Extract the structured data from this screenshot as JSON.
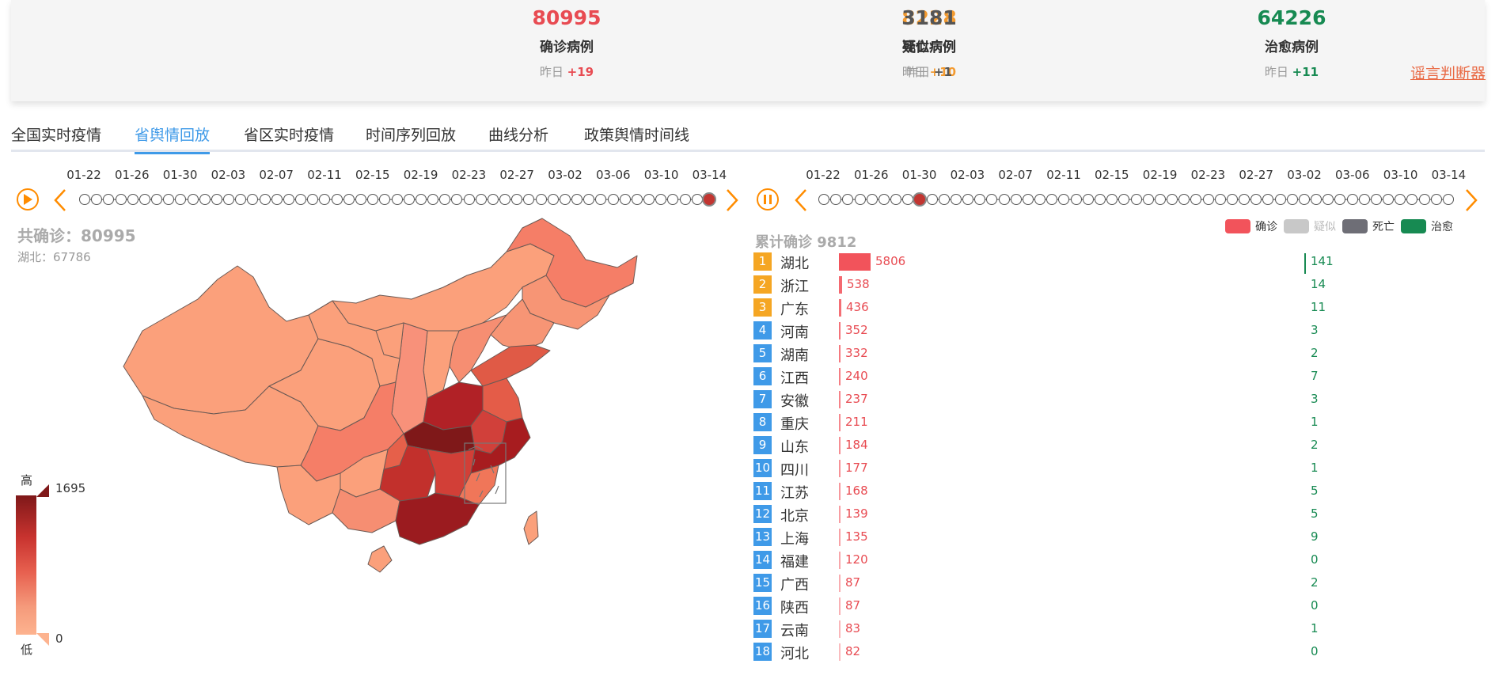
{
  "stats": [
    {
      "value": "80995",
      "label": "确诊病例",
      "yesterday_prefix": "昨日",
      "delta": "+19",
      "color": "#e84b52"
    },
    {
      "value": "8228",
      "label": "疑似病例",
      "yesterday_prefix": "昨日",
      "delta": "+10",
      "color": "#f39a2f"
    },
    {
      "value": "3181",
      "label": "死亡病例",
      "yesterday_prefix": "昨日",
      "delta": "+1",
      "color": "#555555"
    },
    {
      "value": "64226",
      "label": "治愈病例",
      "yesterday_prefix": "昨日",
      "delta": "+11",
      "color": "#178a52"
    }
  ],
  "rumor_link": "谣言判断器",
  "tabs": [
    "全国实时疫情",
    "省舆情回放",
    "省区实时疫情",
    "时间序列回放",
    "曲线分析",
    "政策舆情时间线"
  ],
  "active_tab": 1,
  "timeline_left": {
    "dates": [
      "01-22",
      "01-26",
      "01-30",
      "02-03",
      "02-07",
      "02-11",
      "02-15",
      "02-19",
      "02-23",
      "02-27",
      "03-02",
      "03-06",
      "03-10",
      "03-14"
    ],
    "play_state": "play",
    "current": "03-14"
  },
  "timeline_right": {
    "dates": [
      "01-22",
      "01-26",
      "01-30",
      "02-03",
      "02-07",
      "02-11",
      "02-15",
      "02-19",
      "02-23",
      "02-27",
      "03-02",
      "03-06",
      "03-10",
      "03-14"
    ],
    "play_state": "pause",
    "current": "01-30"
  },
  "map": {
    "title": "共确诊：80995",
    "subtitle": "湖北：67786",
    "legend_high": "高",
    "legend_low": "低",
    "legend_max": "1695",
    "legend_min": "0"
  },
  "ranking": {
    "title": "累计确诊 9812",
    "legend": [
      {
        "label": "确诊",
        "color": "#f2535b"
      },
      {
        "label": "疑似",
        "color": "#c8c8c8"
      },
      {
        "label": "死亡",
        "color": "#6e6e76"
      },
      {
        "label": "治愈",
        "color": "#178a52"
      }
    ],
    "max_confirmed": 5806,
    "rows": [
      {
        "rank": "1",
        "province": "湖北",
        "confirmed": 5806,
        "healed": "141"
      },
      {
        "rank": "2",
        "province": "浙江",
        "confirmed": 538,
        "healed": "14"
      },
      {
        "rank": "3",
        "province": "广东",
        "confirmed": 436,
        "healed": "11"
      },
      {
        "rank": "4",
        "province": "河南",
        "confirmed": 352,
        "healed": "3"
      },
      {
        "rank": "5",
        "province": "湖南",
        "confirmed": 332,
        "healed": "2"
      },
      {
        "rank": "6",
        "province": "江西",
        "confirmed": 240,
        "healed": "7"
      },
      {
        "rank": "7",
        "province": "安徽",
        "confirmed": 237,
        "healed": "3"
      },
      {
        "rank": "8",
        "province": "重庆",
        "confirmed": 211,
        "healed": "1"
      },
      {
        "rank": "9",
        "province": "山东",
        "confirmed": 184,
        "healed": "2"
      },
      {
        "rank": "10",
        "province": "四川",
        "confirmed": 177,
        "healed": "1"
      },
      {
        "rank": "11",
        "province": "江苏",
        "confirmed": 168,
        "healed": "5"
      },
      {
        "rank": "12",
        "province": "北京",
        "confirmed": 139,
        "healed": "5"
      },
      {
        "rank": "13",
        "province": "上海",
        "confirmed": 135,
        "healed": "9"
      },
      {
        "rank": "14",
        "province": "福建",
        "confirmed": 120,
        "healed": "0"
      },
      {
        "rank": "15",
        "province": "广西",
        "confirmed": 87,
        "healed": "2"
      },
      {
        "rank": "16",
        "province": "陕西",
        "confirmed": 87,
        "healed": "0"
      },
      {
        "rank": "17",
        "province": "云南",
        "confirmed": 83,
        "healed": "1"
      },
      {
        "rank": "18",
        "province": "河北",
        "confirmed": 82,
        "healed": "0"
      }
    ]
  },
  "colors": {
    "accent": "#3f9ae8",
    "play_orange": "#ff8c00",
    "rank_top": "#f5a623",
    "rank_other": "#3f9ae8"
  }
}
